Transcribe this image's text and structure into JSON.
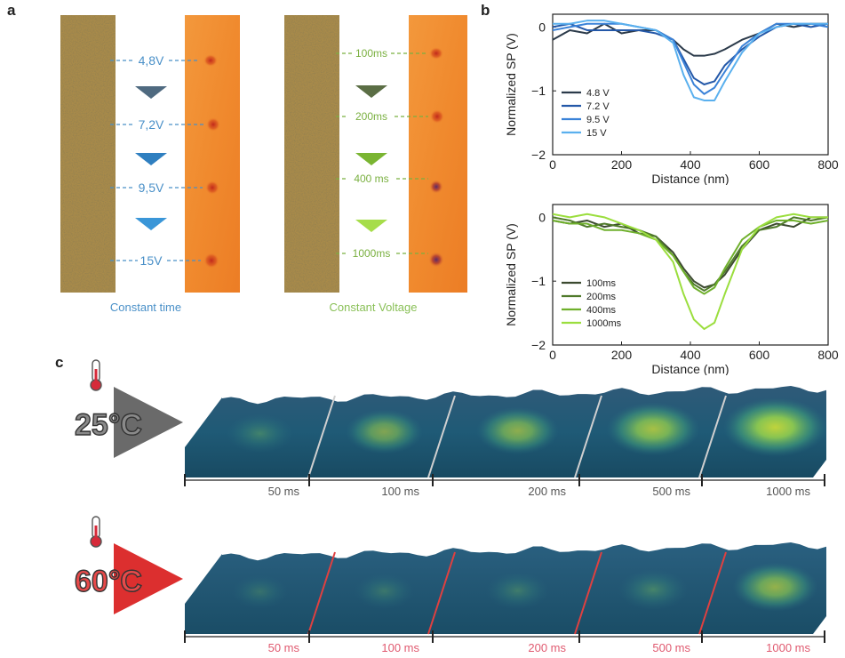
{
  "panel_labels": {
    "a": "a",
    "b": "b",
    "c": "c"
  },
  "panel_a": {
    "left": {
      "caption": "Constant time",
      "labels": [
        "4,8V",
        "7,2V",
        "9,5V",
        "15V"
      ],
      "color": "#4a90c8",
      "arrow_colors": [
        "#4f6a80",
        "#2f7fc0",
        "#3a96d8"
      ]
    },
    "right": {
      "caption": "Constant Voltage",
      "labels": [
        "100ms",
        "200ms",
        "400 ms",
        "1000ms"
      ],
      "color": "#7ab040",
      "arrow_colors": [
        "#5b6e45",
        "#7ab532",
        "#a6dd4a"
      ]
    }
  },
  "chart_data": [
    {
      "type": "line",
      "xlabel": "Distance (nm)",
      "ylabel": "Normalized SP (V)",
      "xlim": [
        0,
        800
      ],
      "ylim": [
        -2,
        0.2
      ],
      "xticks": [
        "0",
        "200",
        "400",
        "600",
        "800"
      ],
      "yticks": [
        "0",
        "-1",
        "-2"
      ],
      "legend_position": "bottom-left",
      "x": [
        0,
        50,
        100,
        150,
        200,
        250,
        300,
        350,
        380,
        410,
        440,
        470,
        500,
        550,
        600,
        650,
        700,
        750,
        800
      ],
      "series": [
        {
          "name": "4.8 V",
          "color": "#2b3a4a",
          "values": [
            -0.2,
            -0.05,
            -0.1,
            0.05,
            -0.1,
            -0.05,
            -0.05,
            -0.2,
            -0.35,
            -0.45,
            -0.45,
            -0.42,
            -0.35,
            -0.2,
            -0.1,
            0.05,
            0.0,
            0.05,
            0.05
          ]
        },
        {
          "name": "7.2 V",
          "color": "#2458a8",
          "values": [
            0.0,
            0.05,
            -0.05,
            -0.05,
            -0.05,
            -0.05,
            -0.1,
            -0.2,
            -0.5,
            -0.8,
            -0.9,
            -0.85,
            -0.6,
            -0.35,
            -0.15,
            0.0,
            0.05,
            0.0,
            0.05
          ]
        },
        {
          "name": "9.5 V",
          "color": "#3a82d8",
          "values": [
            -0.05,
            0.0,
            0.05,
            0.05,
            0.05,
            0.0,
            -0.05,
            -0.2,
            -0.55,
            -0.9,
            -1.05,
            -0.95,
            -0.7,
            -0.3,
            -0.1,
            0.05,
            0.05,
            0.05,
            0.0
          ]
        },
        {
          "name": "15 V",
          "color": "#5ab0ee",
          "values": [
            0.05,
            0.05,
            0.1,
            0.1,
            0.05,
            0.0,
            -0.05,
            -0.25,
            -0.75,
            -1.1,
            -1.15,
            -1.15,
            -0.85,
            -0.4,
            -0.1,
            0.0,
            0.05,
            0.05,
            0.05
          ]
        }
      ]
    },
    {
      "type": "line",
      "xlabel": "Distance (nm)",
      "ylabel": "Normalized SP (V)",
      "xlim": [
        0,
        800
      ],
      "ylim": [
        -2,
        0.2
      ],
      "xticks": [
        "0",
        "200",
        "400",
        "600",
        "800"
      ],
      "yticks": [
        "0",
        "-1",
        "-2"
      ],
      "legend_position": "bottom-left",
      "x": [
        0,
        50,
        100,
        150,
        200,
        250,
        300,
        350,
        380,
        410,
        440,
        470,
        500,
        550,
        600,
        650,
        700,
        750,
        800
      ],
      "series": [
        {
          "name": "100ms",
          "color": "#3c4a30",
          "values": [
            -0.05,
            -0.1,
            -0.05,
            -0.15,
            -0.1,
            -0.25,
            -0.3,
            -0.55,
            -0.8,
            -1.0,
            -1.1,
            -1.05,
            -0.9,
            -0.5,
            -0.2,
            -0.1,
            -0.15,
            0.0,
            0.0
          ]
        },
        {
          "name": "200ms",
          "color": "#4f7a2a",
          "values": [
            0.0,
            -0.05,
            -0.15,
            -0.1,
            -0.15,
            -0.2,
            -0.3,
            -0.6,
            -0.85,
            -1.05,
            -1.15,
            -1.05,
            -0.85,
            -0.45,
            -0.2,
            -0.15,
            0.0,
            -0.05,
            0.0
          ]
        },
        {
          "name": "400ms",
          "color": "#6fb02c",
          "values": [
            -0.05,
            -0.1,
            -0.1,
            -0.2,
            -0.2,
            -0.25,
            -0.35,
            -0.6,
            -0.85,
            -1.1,
            -1.2,
            -1.1,
            -0.8,
            -0.35,
            -0.15,
            -0.05,
            -0.05,
            -0.1,
            -0.05
          ]
        },
        {
          "name": "1000ms",
          "color": "#9bde3e",
          "values": [
            0.05,
            0.0,
            0.05,
            0.0,
            -0.1,
            -0.2,
            -0.35,
            -0.7,
            -1.2,
            -1.6,
            -1.75,
            -1.65,
            -1.2,
            -0.5,
            -0.15,
            0.0,
            0.05,
            0.0,
            0.0
          ]
        }
      ]
    }
  ],
  "panel_c": {
    "rows": [
      {
        "temperature": "25°C",
        "arrow_color": "#6a6a6a",
        "label_color": "#555555",
        "times": [
          "50 ms",
          "100 ms",
          "200 ms",
          "500 ms",
          "1000 ms"
        ],
        "divider_color": "#d0d0d0",
        "peak_intensity": [
          0.25,
          0.45,
          0.55,
          0.75,
          0.95
        ]
      },
      {
        "temperature": "60°C",
        "arrow_color": "#dc2f2f",
        "label_color": "#e05a70",
        "times": [
          "50 ms",
          "100 ms",
          "200 ms",
          "500 ms",
          "1000 ms"
        ],
        "divider_color": "#e04040",
        "peak_intensity": [
          0.05,
          0.12,
          0.18,
          0.3,
          0.6
        ]
      }
    ]
  }
}
